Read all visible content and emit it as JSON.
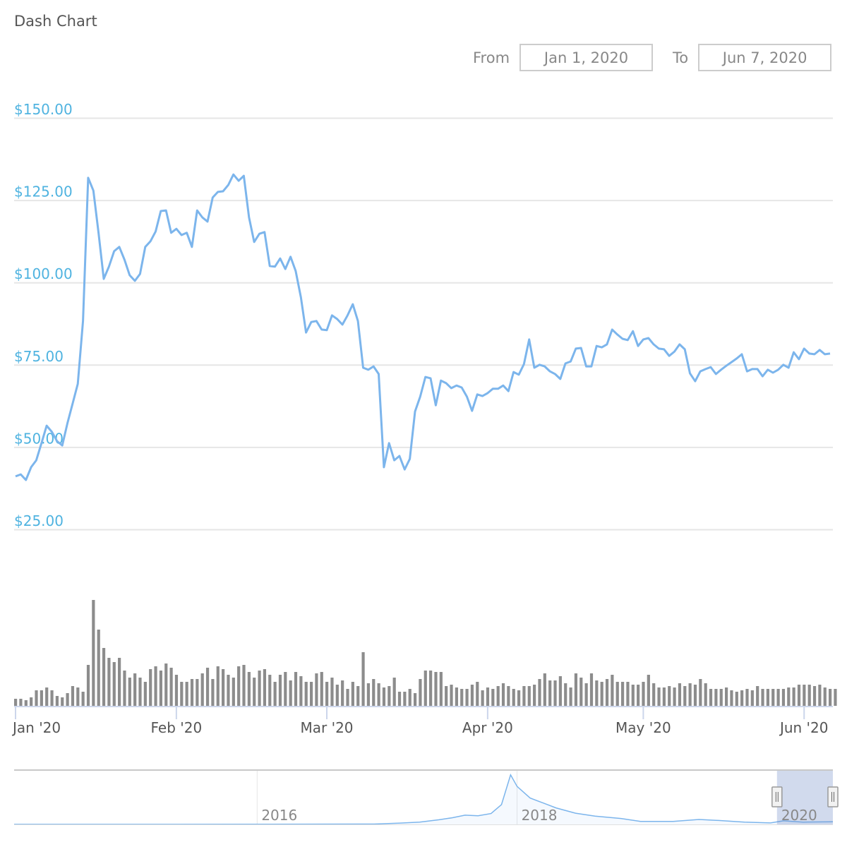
{
  "title": "Dash Chart",
  "range_selector": {
    "from_label": "From",
    "from_value": "Jan 1, 2020",
    "to_label": "To",
    "to_value": "Jun 7, 2020"
  },
  "colors": {
    "line": "#7cb5ec",
    "volume": "#8c8c8c",
    "axis_label": "#4fb3e0",
    "grid": "#e6e6e6",
    "navigator_mask": "#ccd6eb"
  },
  "chart_data": {
    "type": "line",
    "title": "Dash Chart",
    "start_date": "2020-01-01",
    "end_date": "2020-06-07",
    "ylim": [
      25,
      150
    ],
    "y_ticks": [
      {
        "value": 150,
        "label": "$150.00"
      },
      {
        "value": 125,
        "label": "$125.00"
      },
      {
        "value": 100,
        "label": "$100.00"
      },
      {
        "value": 75,
        "label": "$75.00"
      },
      {
        "value": 50,
        "label": "$50.00"
      },
      {
        "value": 25,
        "label": "$25.00"
      }
    ],
    "x_ticks": [
      {
        "day": 0,
        "label": "Jan '20"
      },
      {
        "day": 31,
        "label": "Feb '20"
      },
      {
        "day": 60,
        "label": "Mar '20"
      },
      {
        "day": 91,
        "label": "Apr '20"
      },
      {
        "day": 121,
        "label": "May '20"
      },
      {
        "day": 152,
        "label": "Jun '20"
      }
    ],
    "grid": true,
    "price": [
      41.1,
      41.7,
      40.0,
      43.9,
      46.0,
      51.2,
      56.5,
      54.6,
      51.8,
      50.5,
      57.2,
      63.2,
      69.2,
      88.3,
      131.8,
      127.9,
      115.1,
      101.1,
      104.8,
      109.5,
      110.8,
      106.9,
      102.2,
      100.5,
      102.6,
      110.8,
      112.5,
      115.5,
      121.7,
      121.9,
      115.1,
      116.3,
      114.4,
      115.1,
      110.8,
      121.9,
      119.8,
      118.5,
      125.8,
      127.5,
      127.7,
      129.6,
      132.8,
      130.9,
      132.4,
      119.8,
      112.3,
      114.8,
      115.3,
      105.0,
      104.8,
      107.3,
      104.1,
      107.8,
      103.5,
      95.5,
      84.8,
      88.0,
      88.3,
      85.7,
      85.5,
      90.0,
      88.9,
      87.2,
      90.0,
      93.4,
      88.3,
      74.1,
      73.5,
      74.5,
      72.2,
      43.9,
      51.2,
      46.0,
      47.3,
      43.2,
      46.4,
      60.8,
      65.3,
      71.3,
      70.9,
      62.7,
      70.2,
      69.4,
      67.9,
      68.7,
      68.1,
      65.3,
      61.0,
      66.0,
      65.5,
      66.4,
      67.7,
      67.7,
      68.7,
      67.0,
      72.8,
      72.0,
      75.2,
      82.7,
      74.1,
      75.0,
      74.5,
      73.0,
      72.2,
      70.7,
      75.4,
      76.0,
      79.9,
      80.1,
      74.5,
      74.5,
      80.7,
      80.3,
      81.2,
      85.7,
      84.2,
      82.9,
      82.5,
      85.2,
      80.7,
      82.7,
      83.1,
      81.2,
      79.9,
      79.7,
      77.7,
      79.0,
      81.2,
      79.7,
      72.4,
      70.0,
      73.0,
      73.7,
      74.3,
      72.2,
      73.5,
      74.7,
      75.8,
      76.9,
      78.2,
      73.0,
      73.7,
      73.7,
      71.5,
      73.5,
      72.6,
      73.5,
      75.0,
      74.1,
      78.8,
      76.7,
      79.9,
      78.4,
      78.2,
      79.5,
      78.2,
      78.4
    ],
    "volume_relative": [
      10,
      10,
      8,
      12,
      22,
      22,
      26,
      22,
      14,
      12,
      18,
      28,
      26,
      20,
      58,
      150,
      108,
      82,
      68,
      62,
      68,
      50,
      40,
      46,
      40,
      34,
      52,
      56,
      50,
      60,
      54,
      44,
      34,
      34,
      38,
      38,
      46,
      54,
      38,
      56,
      52,
      44,
      40,
      56,
      58,
      48,
      40,
      50,
      52,
      44,
      34,
      44,
      48,
      36,
      48,
      42,
      34,
      34,
      46,
      48,
      34,
      40,
      30,
      36,
      24,
      34,
      28,
      76,
      32,
      38,
      32,
      26,
      28,
      40,
      20,
      20,
      24,
      18,
      38,
      50,
      50,
      48,
      48,
      28,
      30,
      26,
      24,
      24,
      30,
      34,
      22,
      26,
      24,
      28,
      32,
      28,
      24,
      22,
      28,
      28,
      30,
      38,
      46,
      36,
      36,
      42,
      32,
      26,
      46,
      40,
      32,
      46,
      36,
      34,
      38,
      44,
      34,
      34,
      34,
      30,
      30,
      34,
      44,
      32,
      26,
      26,
      28,
      26,
      32,
      28,
      32,
      30,
      38,
      32,
      24,
      24,
      24,
      26,
      22,
      20,
      22,
      24,
      22,
      28,
      24,
      24,
      24,
      24,
      24,
      26,
      26,
      30,
      30,
      30,
      28,
      30,
      26,
      24,
      24
    ],
    "navigator": {
      "x_labels": [
        {
          "year": 2016,
          "label": "2016"
        },
        {
          "year": 2018,
          "label": "2018"
        },
        {
          "year": 2020,
          "label": "2020"
        }
      ],
      "series": [
        [
          2014.13,
          3
        ],
        [
          2015,
          3
        ],
        [
          2016,
          4
        ],
        [
          2016.9,
          10
        ],
        [
          2017.1,
          40
        ],
        [
          2017.25,
          70
        ],
        [
          2017.4,
          140
        ],
        [
          2017.5,
          200
        ],
        [
          2017.6,
          280
        ],
        [
          2017.7,
          260
        ],
        [
          2017.8,
          330
        ],
        [
          2017.88,
          600
        ],
        [
          2017.95,
          1500
        ],
        [
          2018.0,
          1150
        ],
        [
          2018.1,
          800
        ],
        [
          2018.2,
          650
        ],
        [
          2018.3,
          500
        ],
        [
          2018.45,
          340
        ],
        [
          2018.6,
          250
        ],
        [
          2018.8,
          180
        ],
        [
          2018.95,
          90
        ],
        [
          2019.2,
          90
        ],
        [
          2019.4,
          150
        ],
        [
          2019.55,
          120
        ],
        [
          2019.75,
          70
        ],
        [
          2019.95,
          45
        ],
        [
          2020.05,
          110
        ],
        [
          2020.2,
          70
        ],
        [
          2020.43,
          78
        ]
      ],
      "selected_range": [
        2020.0,
        2020.43
      ]
    }
  }
}
